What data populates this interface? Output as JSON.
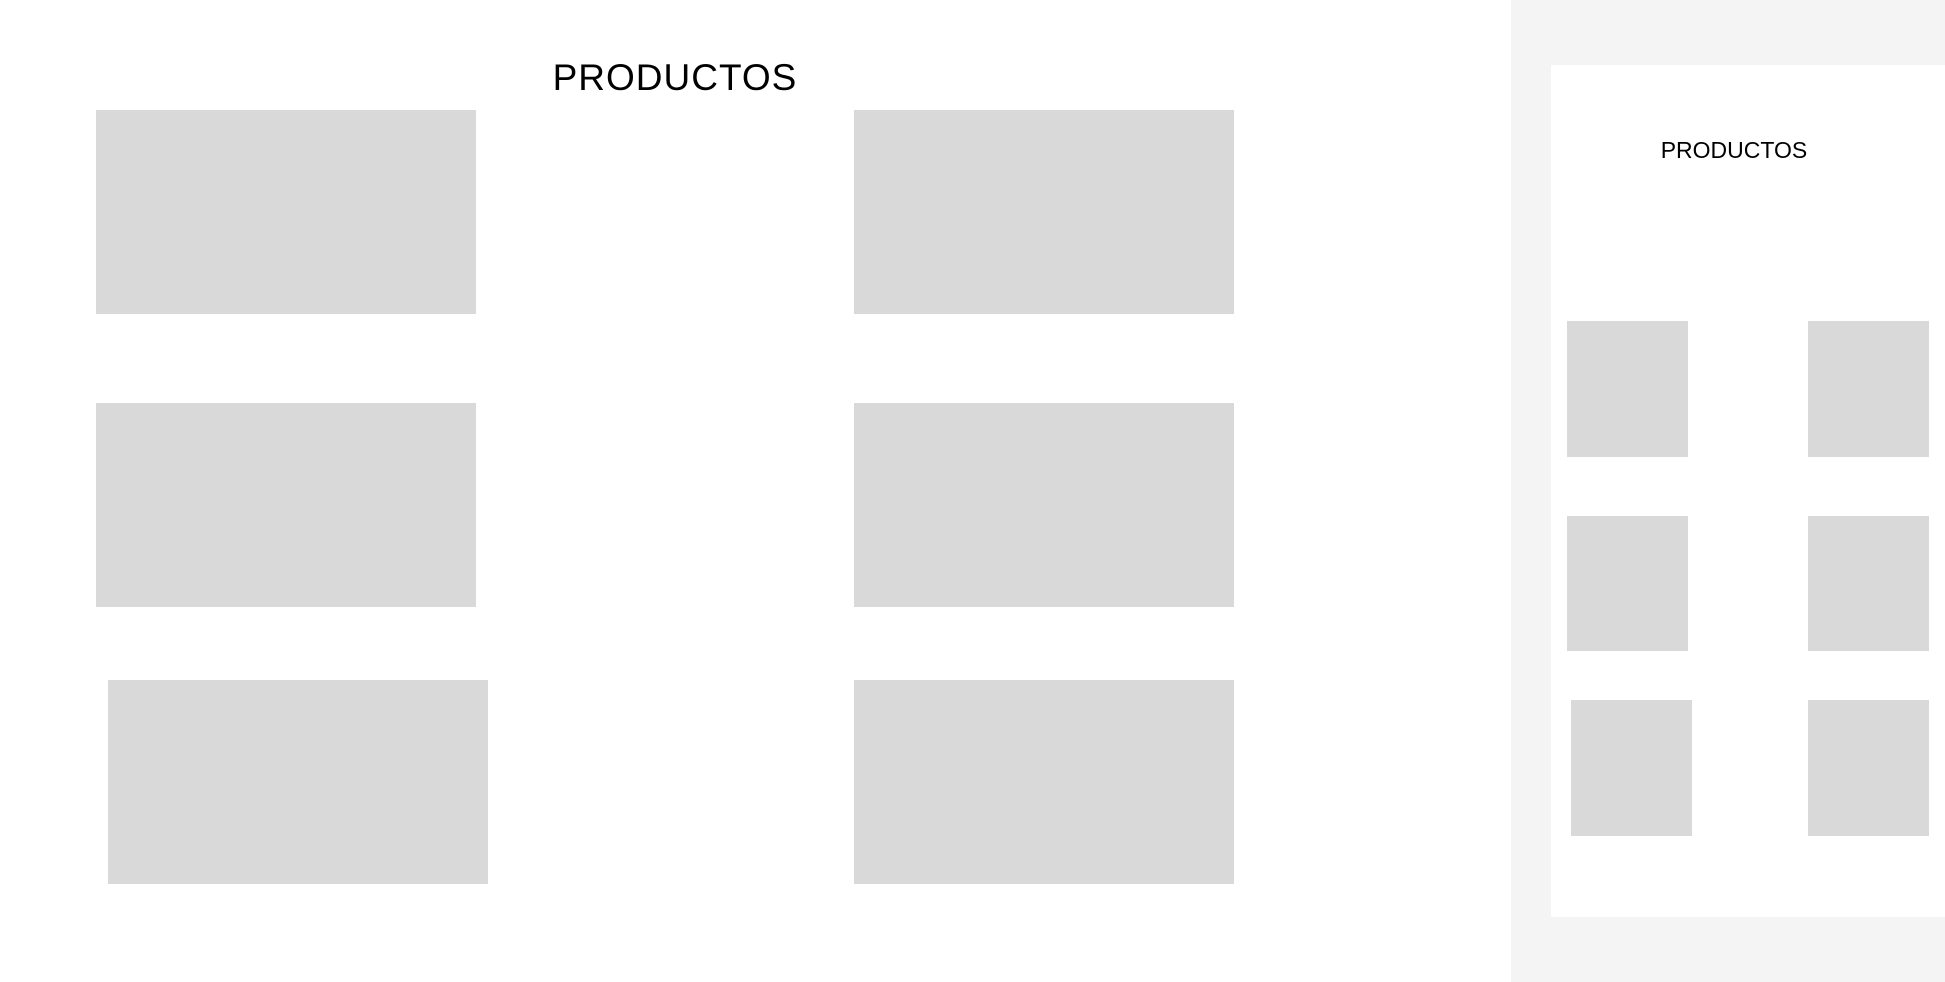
{
  "desktop": {
    "title": "PRODUCTOS",
    "products": [
      {
        "name": "product-card-1"
      },
      {
        "name": "product-card-2"
      },
      {
        "name": "product-card-3"
      },
      {
        "name": "product-card-4"
      },
      {
        "name": "product-card-5"
      },
      {
        "name": "product-card-6"
      }
    ]
  },
  "mobile": {
    "title": "PRODUCTOS"
  },
  "colors": {
    "background": "#ffffff",
    "card": "#d9d9d9",
    "side_panel": "#f4f4f4"
  }
}
